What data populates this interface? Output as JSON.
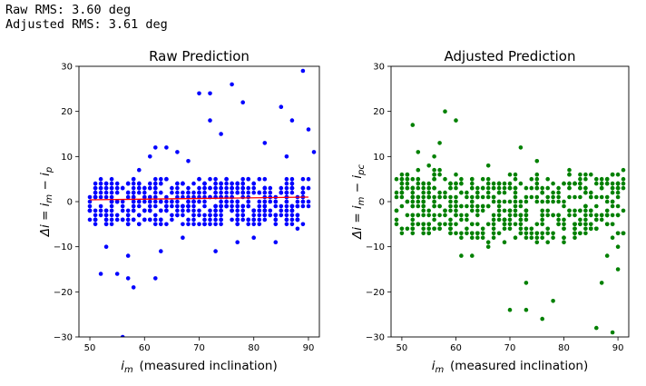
{
  "output": {
    "raw_rms": "Raw RMS: 3.60 deg",
    "adj_rms": "Adjusted RMS: 3.61 deg"
  },
  "chart_data": [
    {
      "type": "scatter",
      "title": "Raw Prediction",
      "xlabel": "i_m  (measured inclination)",
      "ylabel": "Δi = i_m − i_p",
      "xlim": [
        48,
        92
      ],
      "ylim": [
        -30,
        30
      ],
      "xticks": [
        50,
        60,
        70,
        80,
        90
      ],
      "yticks": [
        -30,
        -20,
        -10,
        0,
        10,
        20,
        30
      ],
      "colors": {
        "points": "#0000ff",
        "fit_line": "#ff0000"
      },
      "fit_line": {
        "x": [
          50,
          90
        ],
        "y": [
          0.4,
          1.0
        ]
      },
      "outliers": [
        [
          56,
          -30
        ],
        [
          57,
          -17
        ],
        [
          58,
          -19
        ],
        [
          55,
          -16
        ],
        [
          52,
          -16
        ],
        [
          62,
          -17
        ],
        [
          70,
          24
        ],
        [
          72,
          24
        ],
        [
          76,
          26
        ],
        [
          78,
          22
        ],
        [
          72,
          18
        ],
        [
          89,
          29
        ],
        [
          85,
          21
        ],
        [
          87,
          18
        ],
        [
          90,
          16
        ],
        [
          82,
          13
        ],
        [
          74,
          15
        ],
        [
          86,
          10
        ],
        [
          62,
          12
        ],
        [
          64,
          12
        ],
        [
          61,
          10
        ],
        [
          66,
          11
        ],
        [
          68,
          9
        ],
        [
          73,
          -11
        ],
        [
          77,
          -9
        ],
        [
          53,
          -10
        ],
        [
          57,
          -12
        ],
        [
          63,
          -11
        ],
        [
          67,
          -8
        ],
        [
          80,
          -8
        ],
        [
          84,
          -9
        ],
        [
          88,
          -6
        ],
        [
          91,
          11
        ],
        [
          59,
          7
        ]
      ],
      "cloud": {
        "x_range": [
          50,
          90
        ],
        "y_bottom": -5,
        "y_top": 5,
        "count": 520
      }
    },
    {
      "type": "scatter",
      "title": "Adjusted Prediction",
      "xlabel": "i_m  (measured inclination)",
      "ylabel": "Δi = i_m − i_pc",
      "xlim": [
        48,
        92
      ],
      "ylim": [
        -30,
        30
      ],
      "xticks": [
        50,
        60,
        70,
        80,
        90
      ],
      "yticks": [
        -30,
        -20,
        -10,
        0,
        10,
        20,
        30
      ],
      "colors": {
        "points": "#008000"
      },
      "outliers": [
        [
          52,
          17
        ],
        [
          58,
          20
        ],
        [
          60,
          18
        ],
        [
          57,
          13
        ],
        [
          53,
          11
        ],
        [
          56,
          10
        ],
        [
          72,
          12
        ],
        [
          66,
          8
        ],
        [
          75,
          9
        ],
        [
          61,
          -12
        ],
        [
          63,
          -12
        ],
        [
          73,
          -18
        ],
        [
          73,
          -24
        ],
        [
          70,
          -24
        ],
        [
          76,
          -26
        ],
        [
          78,
          -22
        ],
        [
          86,
          -28
        ],
        [
          89,
          -29
        ],
        [
          90,
          -15
        ],
        [
          87,
          -18
        ],
        [
          88,
          -12
        ],
        [
          90,
          -10
        ],
        [
          82,
          -8
        ],
        [
          66,
          -10
        ],
        [
          69,
          -9
        ],
        [
          55,
          8
        ],
        [
          50,
          4
        ]
      ],
      "cloud": {
        "x_range": [
          49,
          91
        ],
        "y_bottom": -8,
        "y_top": 6,
        "count": 520
      }
    }
  ]
}
